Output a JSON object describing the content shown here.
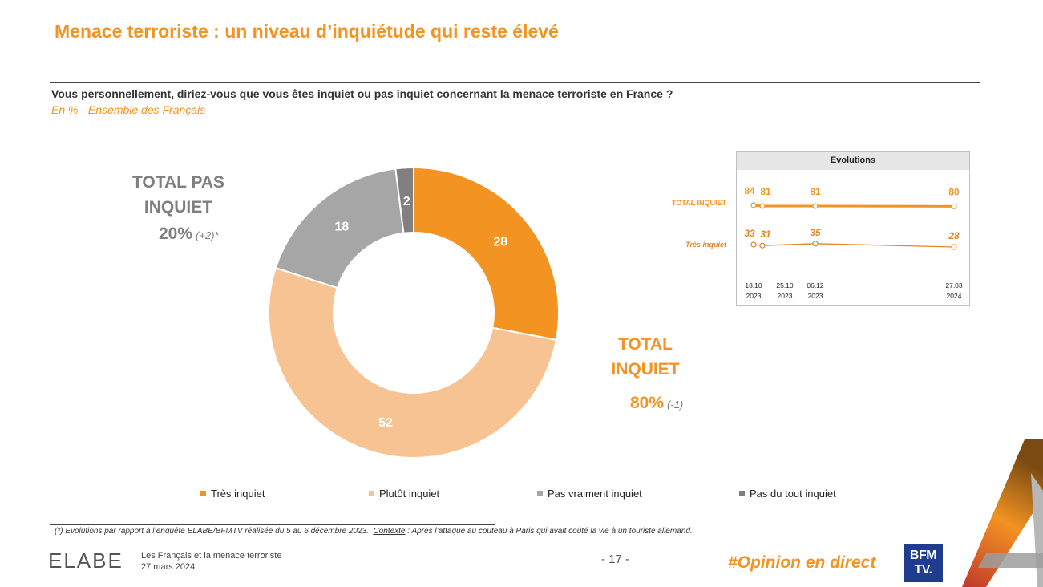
{
  "header": {
    "title": "Menace terroriste : un niveau d’inquiétude qui reste élevé",
    "question": "Vous personnellement, diriez-vous que vous êtes inquiet ou pas inquiet concernant la menace terroriste en France ?",
    "subtitle": "En % - Ensemble des Français"
  },
  "totals": {
    "pas_inquiet_label": "TOTAL PAS INQUIET",
    "pas_inquiet_value": "20%",
    "pas_inquiet_delta": "(+2)*",
    "inquiet_label": "TOTAL INQUIET",
    "inquiet_value": "80%",
    "inquiet_delta": "(-1)"
  },
  "colors": {
    "tres_inquiet": "#f39322",
    "plutot_inquiet": "#f8c393",
    "pas_vraiment": "#a6a6a6",
    "pas_du_tout": "#808080",
    "accent": "#f39322",
    "evo_line_total": "#f39322",
    "evo_line_tres": "#e0862b"
  },
  "chart_data": [
    {
      "type": "pie",
      "variant": "donut",
      "categories": [
        "Très inquiet",
        "Plutôt inquiet",
        "Pas vraiment inquiet",
        "Pas du tout inquiet"
      ],
      "values": [
        28,
        52,
        18,
        2
      ],
      "legend_position": "bottom"
    },
    {
      "type": "line",
      "title": "Evolutions",
      "x": [
        "18.10 2023",
        "25.10 2023",
        "06.12 2023",
        "27.03 2024"
      ],
      "series": [
        {
          "name": "TOTAL INQUIET",
          "values": [
            84,
            81,
            81,
            80
          ]
        },
        {
          "name": "Très inquiet",
          "values": [
            33,
            31,
            35,
            28
          ]
        }
      ]
    }
  ],
  "footer": {
    "footnote_prefix": "(*) Evolutions par rapport à l’enquête ELABE/BFMTV réalisée du 5 au 6 décembre 2023.",
    "footnote_context_label": "Contexte",
    "footnote_context_text": ": Après l’attaque au couteau à Paris qui avait coûté la vie à un touriste allemand.",
    "brand": "ELABE",
    "study_title": "Les Français et la menace terroriste",
    "study_date": "27 mars 2024",
    "page": "- 17 -",
    "hashtag": "#Opinion en direct",
    "bfm_line1": "BFM",
    "bfm_line2": "TV."
  }
}
